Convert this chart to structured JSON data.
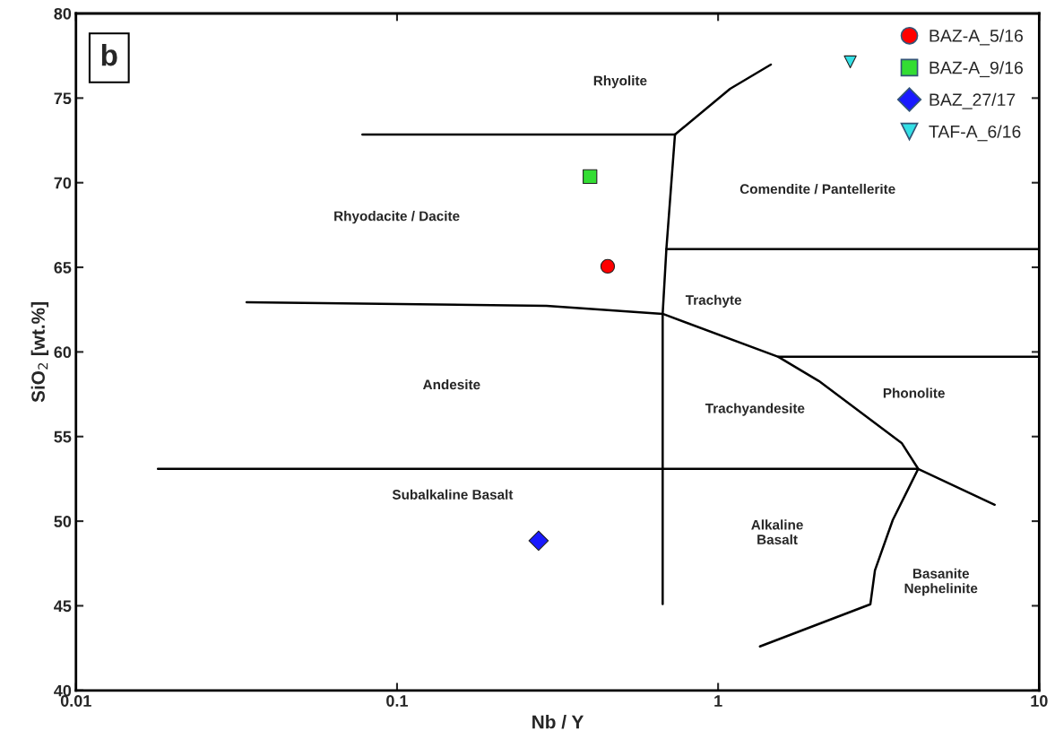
{
  "chart_data": {
    "type": "scatter",
    "xlabel": "Nb / Y",
    "ylabel": "SiO$_{2}$ [wt.%]",
    "log": "x",
    "xlim": [
      0.01,
      10
    ],
    "xticks": [
      0.01,
      0.1,
      1,
      10
    ],
    "ylim": [
      40,
      80
    ],
    "yticks": [
      40,
      45,
      50,
      55,
      60,
      65,
      70,
      75,
      80
    ],
    "grid": false,
    "legend": "top right",
    "series": [
      {
        "type": "line",
        "color": "#000000",
        "x": [
          0.078,
          0.734
        ],
        "values": [
          72.85,
          72.85
        ]
      },
      {
        "type": "line",
        "color": "#000000",
        "x": [
          0.734,
          1.09,
          1.46
        ],
        "values": [
          72.85,
          75.55,
          76.98
        ]
      },
      {
        "type": "line",
        "color": "#000000",
        "x": [
          0.734,
          0.69,
          0.672,
          0.672
        ],
        "values": [
          72.85,
          66.07,
          62.25,
          45.1
        ]
      },
      {
        "type": "line",
        "color": "#000000",
        "x": [
          0.69,
          10
        ],
        "values": [
          66.07,
          66.07
        ]
      },
      {
        "type": "line",
        "color": "#000000",
        "x": [
          0.034,
          0.292,
          0.672,
          1.54,
          2.06,
          3.73,
          4.2
        ],
        "values": [
          62.94,
          62.73,
          62.25,
          59.71,
          58.28,
          54.62,
          53.09
        ]
      },
      {
        "type": "line",
        "color": "#000000",
        "x": [
          1.54,
          10
        ],
        "values": [
          59.71,
          59.71
        ]
      },
      {
        "type": "line",
        "color": "#000000",
        "x": [
          0.018,
          4.2,
          7.27
        ],
        "values": [
          53.09,
          53.09,
          50.97
        ]
      },
      {
        "type": "line",
        "color": "#000000",
        "x": [
          4.2,
          3.5,
          3.08,
          2.98,
          1.35
        ],
        "values": [
          53.09,
          50.07,
          47.1,
          45.09,
          42.6
        ]
      },
      {
        "name": "BAZ-A_5/16",
        "color": "#ff0000",
        "marker": "circle",
        "x": [
          0.453
        ],
        "values": [
          65.06
        ]
      },
      {
        "name": "BAZ-A_9/16",
        "color": "#33dd33",
        "marker": "square",
        "x": [
          0.399
        ],
        "values": [
          70.36
        ]
      },
      {
        "name": "BAZ_27/17",
        "color": "#1a1aff",
        "marker": "diamond",
        "x": [
          0.276
        ],
        "values": [
          48.85
        ]
      },
      {
        "name": "TAF-A_6/16",
        "color": "#33e0e6",
        "marker": "triangle",
        "x": [
          2.58
        ],
        "values": [
          77.14
        ]
      }
    ],
    "annotations": [
      "b",
      "Rhyolite",
      "Comendite / Pantellerite",
      "Rhyodacite / Dacite",
      "Trachyte",
      "Andesite",
      "Trachyandesite",
      "Phonolite",
      "Subalkaline Basalt",
      "Alkaline\nBasalt",
      "Basanite\nNephelinite"
    ]
  }
}
